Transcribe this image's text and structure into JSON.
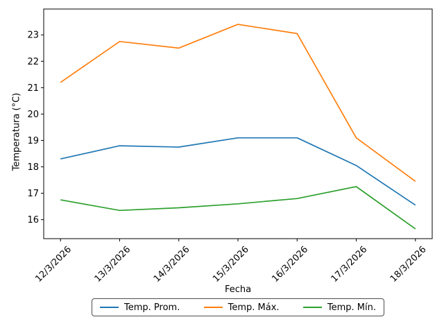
{
  "chart_data": {
    "type": "line",
    "title": "",
    "xlabel": "Fecha",
    "ylabel": "Temperatura (°C)",
    "x": [
      "12/3/2026",
      "13/3/2026",
      "14/3/2026",
      "15/3/2026",
      "16/3/2026",
      "17/3/2026",
      "18/3/2026"
    ],
    "series": [
      {
        "name": "Temp. Prom.",
        "color": "#1f77b4",
        "values": [
          18.3,
          18.8,
          18.75,
          19.1,
          19.1,
          18.05,
          16.55
        ]
      },
      {
        "name": "Temp. Máx.",
        "color": "#ff7f0e",
        "values": [
          21.2,
          22.75,
          22.5,
          23.4,
          23.05,
          19.1,
          17.45
        ]
      },
      {
        "name": "Temp. Mín.",
        "color": "#2ca02c",
        "values": [
          16.75,
          16.35,
          16.45,
          16.6,
          16.8,
          17.25,
          15.65
        ]
      }
    ],
    "yticks": [
      16,
      17,
      18,
      19,
      20,
      21,
      22,
      23
    ],
    "ylim": [
      15.28,
      23.98
    ],
    "xtick_rotation": 45,
    "grid": false,
    "legend_position": "bottom-center",
    "axis_color": "#000000",
    "background": "#ffffff",
    "line_width": 1.7
  }
}
